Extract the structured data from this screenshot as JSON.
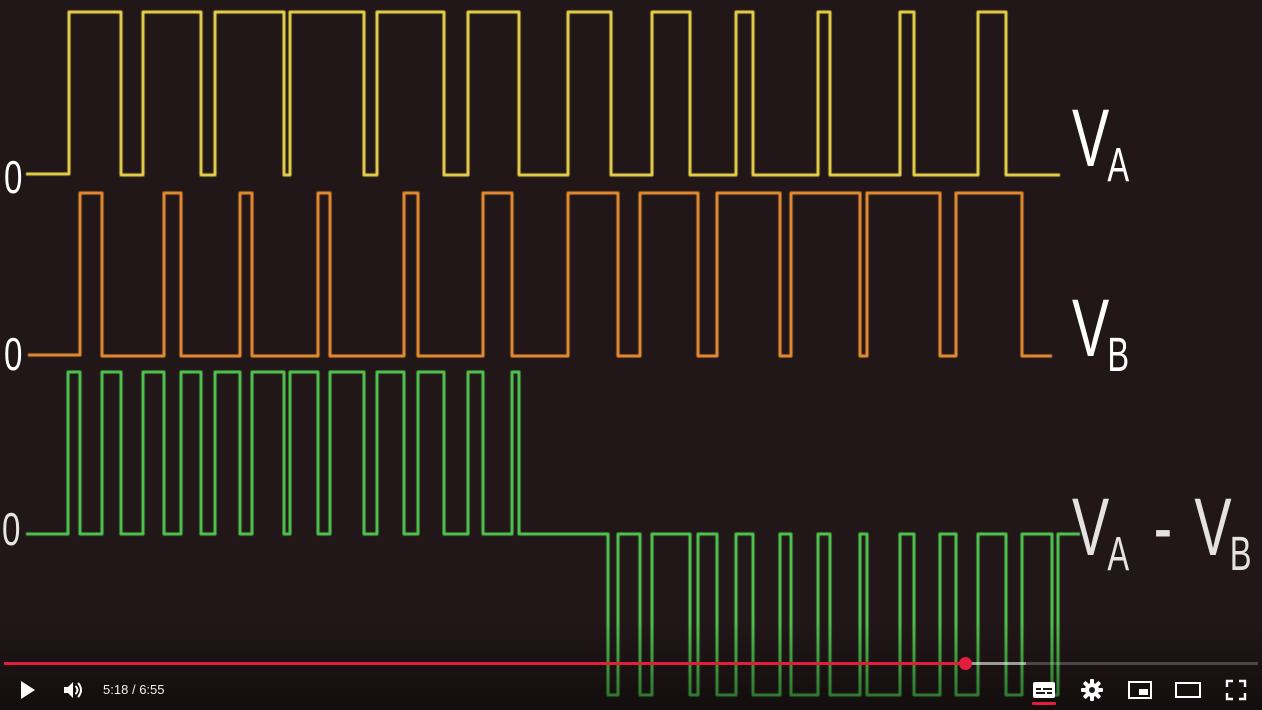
{
  "video": {
    "zero_label": "0",
    "signals": [
      {
        "id": "va",
        "label_main": "V",
        "label_sub": "A",
        "color": "#e8d34a"
      },
      {
        "id": "vb",
        "label_main": "V",
        "label_sub": "B",
        "color": "#e88d33"
      },
      {
        "id": "diff",
        "label_parts": [
          "V",
          "A",
          "-",
          "V",
          "B"
        ],
        "color": "#4fc64f"
      }
    ]
  },
  "player": {
    "current_time": "5:18",
    "separator": "/",
    "duration": "6:55",
    "progress_fraction": 0.766,
    "buffered_fraction": 0.815,
    "accent_color": "#e31e3d",
    "icons": {
      "play": "play-icon",
      "volume": "volume-icon",
      "captions": "subtitles-icon",
      "settings": "gear-icon",
      "miniplayer": "miniplayer-icon",
      "theater": "theater-mode-icon",
      "fullscreen": "fullscreen-icon"
    }
  }
}
